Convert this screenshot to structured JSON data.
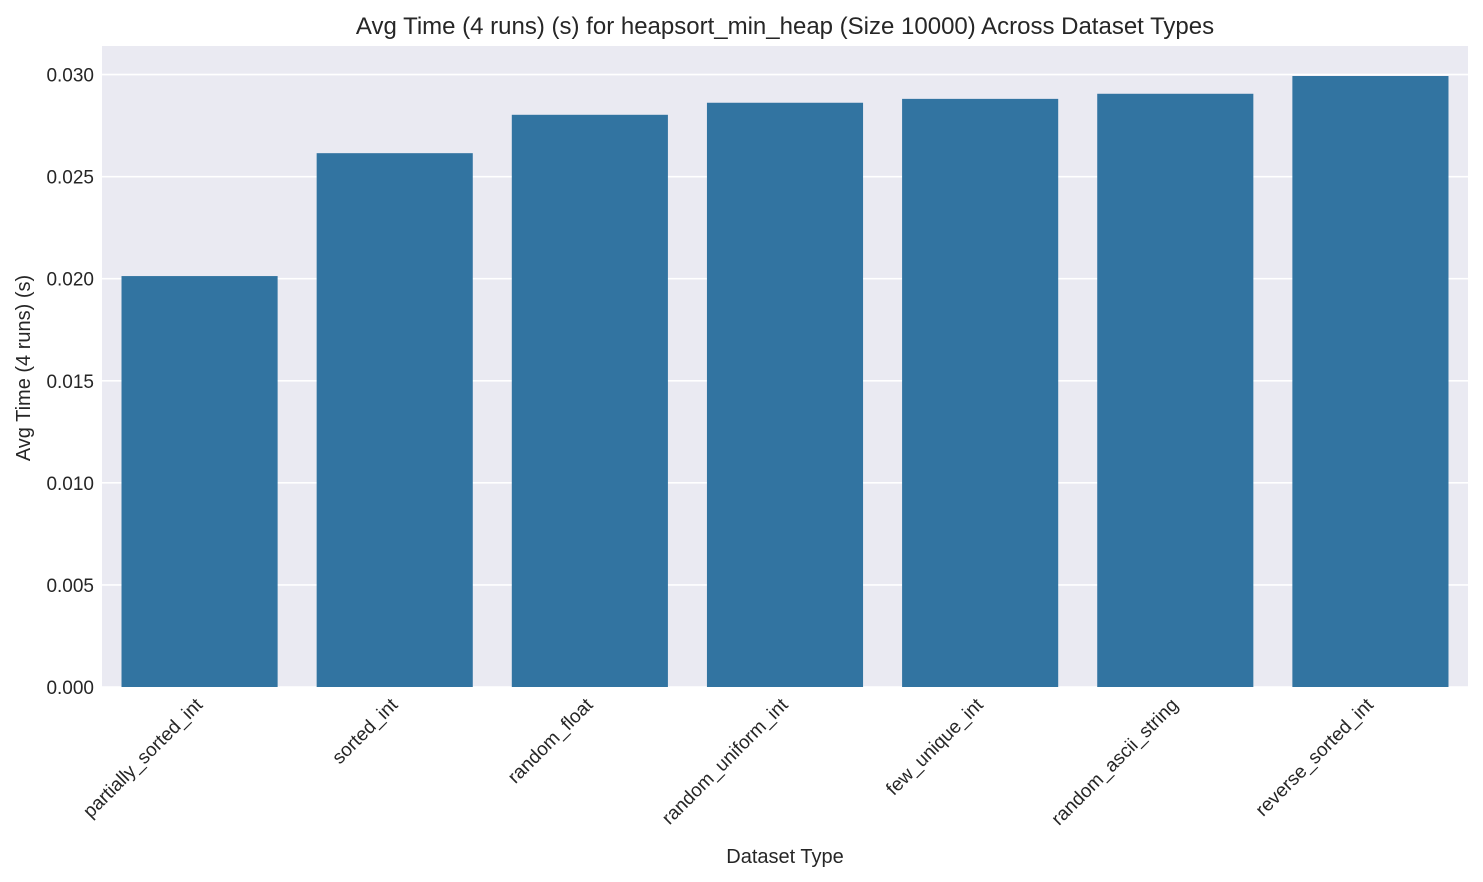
{
  "chart_data": {
    "type": "bar",
    "title": "Avg Time (4 runs) (s) for heapsort_min_heap (Size 10000) Across Dataset Types",
    "xlabel": "Dataset Type",
    "ylabel": "Avg Time (4 runs) (s)",
    "categories": [
      "partially_sorted_int",
      "sorted_int",
      "random_float",
      "random_uniform_int",
      "few_unique_int",
      "random_ascii_string",
      "reverse_sorted_int"
    ],
    "values": [
      0.02013,
      0.02615,
      0.02803,
      0.02862,
      0.02881,
      0.02906,
      0.02993
    ],
    "ylim": [
      0,
      0.0314
    ],
    "yticks": [
      0.0,
      0.005,
      0.01,
      0.015,
      0.02,
      0.025,
      0.03
    ],
    "ytick_labels": [
      "0.000",
      "0.005",
      "0.010",
      "0.015",
      "0.020",
      "0.025",
      "0.030"
    ],
    "grid": true,
    "legend": "none",
    "colors": {
      "bar": "#3274a1",
      "plot_background": "#eaeaf2",
      "grid": "#ffffff",
      "text": "#262626"
    }
  }
}
